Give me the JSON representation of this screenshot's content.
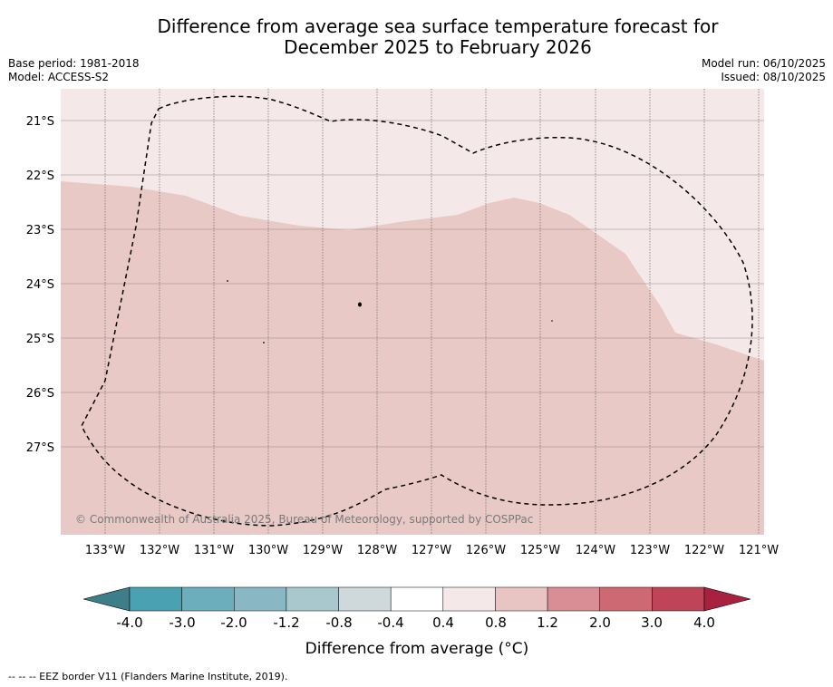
{
  "title": {
    "line1": "Difference from average sea surface temperature forecast for",
    "line2": "December 2025 to February 2026"
  },
  "meta": {
    "base_period": "Base period: 1981-2018",
    "model": "Model: ACCESS-S2",
    "model_run": "Model run: 06/10/2025",
    "issued": "Issued: 08/10/2025"
  },
  "map": {
    "lon_labels": [
      "133°W",
      "132°W",
      "131°W",
      "130°W",
      "129°W",
      "128°W",
      "127°W",
      "126°W",
      "125°W",
      "124°W",
      "123°W",
      "122°W",
      "121°W"
    ],
    "lat_labels": [
      "21°S",
      "22°S",
      "23°S",
      "24°S",
      "25°S",
      "26°S",
      "27°S"
    ],
    "copyright": "© Commonwealth of Australia 2025, Bureau of Meteorology, supported by COSPPac",
    "colors": {
      "light_band": "#f5e8e8",
      "warm_band": "#e8c9c5"
    }
  },
  "colorbar": {
    "tick_labels": [
      "-4.0",
      "-3.0",
      "-2.0",
      "-1.2",
      "-0.8",
      "-0.4",
      "0.4",
      "0.8",
      "1.2",
      "2.0",
      "3.0",
      "4.0"
    ],
    "colors": [
      "#4aa1b2",
      "#6daebc",
      "#8ab7c4",
      "#a9c8cd",
      "#cfd8da",
      "#ffffff",
      "#f5e8e8",
      "#e8c5c2",
      "#d98e96",
      "#cc6972",
      "#bf4457"
    ],
    "under_color": "#3e7e8a",
    "over_color": "#a8213e",
    "label": "Difference from average (°C)"
  },
  "footnote": "--  --  -- EEZ border V11 (Flanders Marine Institute, 2019)."
}
